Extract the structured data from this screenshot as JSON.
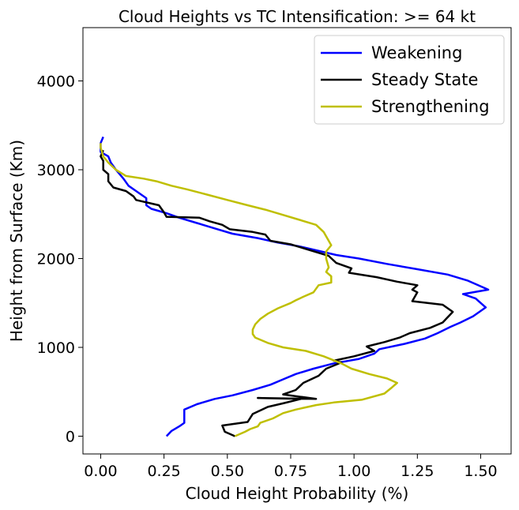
{
  "chart_data": {
    "type": "line",
    "title": "Cloud Heights vs TC Intensification: >= 64 kt",
    "xlabel": "Cloud Height Probability (%)",
    "ylabel": "Height from Surface (Km)",
    "xlim": [
      -0.07,
      1.62
    ],
    "ylim": [
      -200,
      4600
    ],
    "xticks": [
      0.0,
      0.25,
      0.5,
      0.75,
      1.0,
      1.25,
      1.5
    ],
    "xtick_labels": [
      "0.00",
      "0.25",
      "0.50",
      "0.75",
      "1.00",
      "1.25",
      "1.50"
    ],
    "yticks": [
      0,
      1000,
      2000,
      3000,
      4000
    ],
    "ytick_labels": [
      "0",
      "1000",
      "2000",
      "3000",
      "4000"
    ],
    "grid": false,
    "legend_position": "top-right",
    "series": [
      {
        "name": "Weakening",
        "color": "#0000ff",
        "points": [
          [
            0.26,
            0
          ],
          [
            0.28,
            60
          ],
          [
            0.31,
            110
          ],
          [
            0.33,
            150
          ],
          [
            0.33,
            300
          ],
          [
            0.38,
            360
          ],
          [
            0.45,
            420
          ],
          [
            0.52,
            460
          ],
          [
            0.6,
            520
          ],
          [
            0.67,
            580
          ],
          [
            0.72,
            640
          ],
          [
            0.77,
            700
          ],
          [
            0.84,
            760
          ],
          [
            0.92,
            820
          ],
          [
            1.02,
            870
          ],
          [
            1.08,
            930
          ],
          [
            1.1,
            980
          ],
          [
            1.2,
            1040
          ],
          [
            1.28,
            1100
          ],
          [
            1.33,
            1160
          ],
          [
            1.38,
            1230
          ],
          [
            1.42,
            1280
          ],
          [
            1.47,
            1350
          ],
          [
            1.52,
            1450
          ],
          [
            1.48,
            1550
          ],
          [
            1.43,
            1600
          ],
          [
            1.53,
            1650
          ],
          [
            1.45,
            1750
          ],
          [
            1.37,
            1820
          ],
          [
            1.25,
            1880
          ],
          [
            1.13,
            1940
          ],
          [
            1.02,
            2000
          ],
          [
            0.93,
            2040
          ],
          [
            0.87,
            2080
          ],
          [
            0.78,
            2140
          ],
          [
            0.7,
            2180
          ],
          [
            0.62,
            2230
          ],
          [
            0.52,
            2280
          ],
          [
            0.45,
            2340
          ],
          [
            0.38,
            2400
          ],
          [
            0.31,
            2460
          ],
          [
            0.26,
            2510
          ],
          [
            0.2,
            2560
          ],
          [
            0.18,
            2600
          ],
          [
            0.18,
            2680
          ],
          [
            0.14,
            2760
          ],
          [
            0.11,
            2820
          ],
          [
            0.09,
            2900
          ],
          [
            0.06,
            3000
          ],
          [
            0.04,
            3080
          ],
          [
            0.03,
            3150
          ],
          [
            0.0,
            3200
          ],
          [
            0.0,
            3300
          ],
          [
            0.01,
            3370
          ]
        ]
      },
      {
        "name": "Steady State",
        "color": "#000000",
        "points": [
          [
            0.53,
            0
          ],
          [
            0.49,
            50
          ],
          [
            0.48,
            120
          ],
          [
            0.58,
            160
          ],
          [
            0.6,
            250
          ],
          [
            0.66,
            330
          ],
          [
            0.72,
            370
          ],
          [
            0.79,
            420
          ],
          [
            0.62,
            430
          ],
          [
            0.85,
            420
          ],
          [
            0.72,
            470
          ],
          [
            0.77,
            520
          ],
          [
            0.8,
            600
          ],
          [
            0.86,
            680
          ],
          [
            0.89,
            760
          ],
          [
            0.95,
            830
          ],
          [
            0.92,
            850
          ],
          [
            1.0,
            900
          ],
          [
            1.08,
            960
          ],
          [
            1.05,
            1010
          ],
          [
            1.12,
            1060
          ],
          [
            1.18,
            1110
          ],
          [
            1.22,
            1160
          ],
          [
            1.3,
            1220
          ],
          [
            1.35,
            1280
          ],
          [
            1.39,
            1400
          ],
          [
            1.35,
            1480
          ],
          [
            1.23,
            1520
          ],
          [
            1.25,
            1620
          ],
          [
            1.23,
            1650
          ],
          [
            1.25,
            1700
          ],
          [
            1.17,
            1740
          ],
          [
            1.09,
            1790
          ],
          [
            0.98,
            1840
          ],
          [
            0.99,
            1890
          ],
          [
            0.93,
            1950
          ],
          [
            0.9,
            2030
          ],
          [
            0.82,
            2100
          ],
          [
            0.75,
            2160
          ],
          [
            0.67,
            2200
          ],
          [
            0.65,
            2270
          ],
          [
            0.6,
            2300
          ],
          [
            0.51,
            2330
          ],
          [
            0.48,
            2380
          ],
          [
            0.43,
            2420
          ],
          [
            0.39,
            2460
          ],
          [
            0.26,
            2470
          ],
          [
            0.25,
            2520
          ],
          [
            0.23,
            2600
          ],
          [
            0.14,
            2660
          ],
          [
            0.13,
            2700
          ],
          [
            0.1,
            2760
          ],
          [
            0.05,
            2800
          ],
          [
            0.03,
            2870
          ],
          [
            0.03,
            2950
          ],
          [
            0.01,
            3000
          ],
          [
            0.01,
            3100
          ],
          [
            0.0,
            3150
          ],
          [
            0.01,
            3220
          ]
        ]
      },
      {
        "name": "Strengthening",
        "color": "#bfbf00",
        "points": [
          [
            0.53,
            0
          ],
          [
            0.57,
            50
          ],
          [
            0.59,
            80
          ],
          [
            0.62,
            110
          ],
          [
            0.63,
            150
          ],
          [
            0.68,
            200
          ],
          [
            0.72,
            260
          ],
          [
            0.77,
            300
          ],
          [
            0.85,
            350
          ],
          [
            0.92,
            380
          ],
          [
            1.03,
            410
          ],
          [
            1.12,
            480
          ],
          [
            1.15,
            550
          ],
          [
            1.17,
            600
          ],
          [
            1.13,
            650
          ],
          [
            1.06,
            700
          ],
          [
            0.99,
            760
          ],
          [
            0.95,
            820
          ],
          [
            0.88,
            900
          ],
          [
            0.81,
            960
          ],
          [
            0.72,
            1000
          ],
          [
            0.66,
            1050
          ],
          [
            0.61,
            1110
          ],
          [
            0.6,
            1150
          ],
          [
            0.6,
            1200
          ],
          [
            0.61,
            1260
          ],
          [
            0.63,
            1320
          ],
          [
            0.66,
            1380
          ],
          [
            0.7,
            1440
          ],
          [
            0.75,
            1500
          ],
          [
            0.77,
            1530
          ],
          [
            0.8,
            1570
          ],
          [
            0.84,
            1620
          ],
          [
            0.86,
            1700
          ],
          [
            0.91,
            1730
          ],
          [
            0.91,
            1800
          ],
          [
            0.89,
            1850
          ],
          [
            0.9,
            1900
          ],
          [
            0.89,
            2000
          ],
          [
            0.89,
            2080
          ],
          [
            0.91,
            2150
          ],
          [
            0.9,
            2200
          ],
          [
            0.88,
            2300
          ],
          [
            0.85,
            2380
          ],
          [
            0.78,
            2440
          ],
          [
            0.71,
            2500
          ],
          [
            0.65,
            2550
          ],
          [
            0.58,
            2600
          ],
          [
            0.5,
            2660
          ],
          [
            0.42,
            2720
          ],
          [
            0.34,
            2780
          ],
          [
            0.28,
            2820
          ],
          [
            0.22,
            2870
          ],
          [
            0.17,
            2900
          ],
          [
            0.1,
            2930
          ],
          [
            0.06,
            3000
          ],
          [
            0.03,
            3080
          ],
          [
            0.01,
            3150
          ],
          [
            0.0,
            3250
          ],
          [
            0.0,
            3300
          ]
        ]
      }
    ]
  }
}
